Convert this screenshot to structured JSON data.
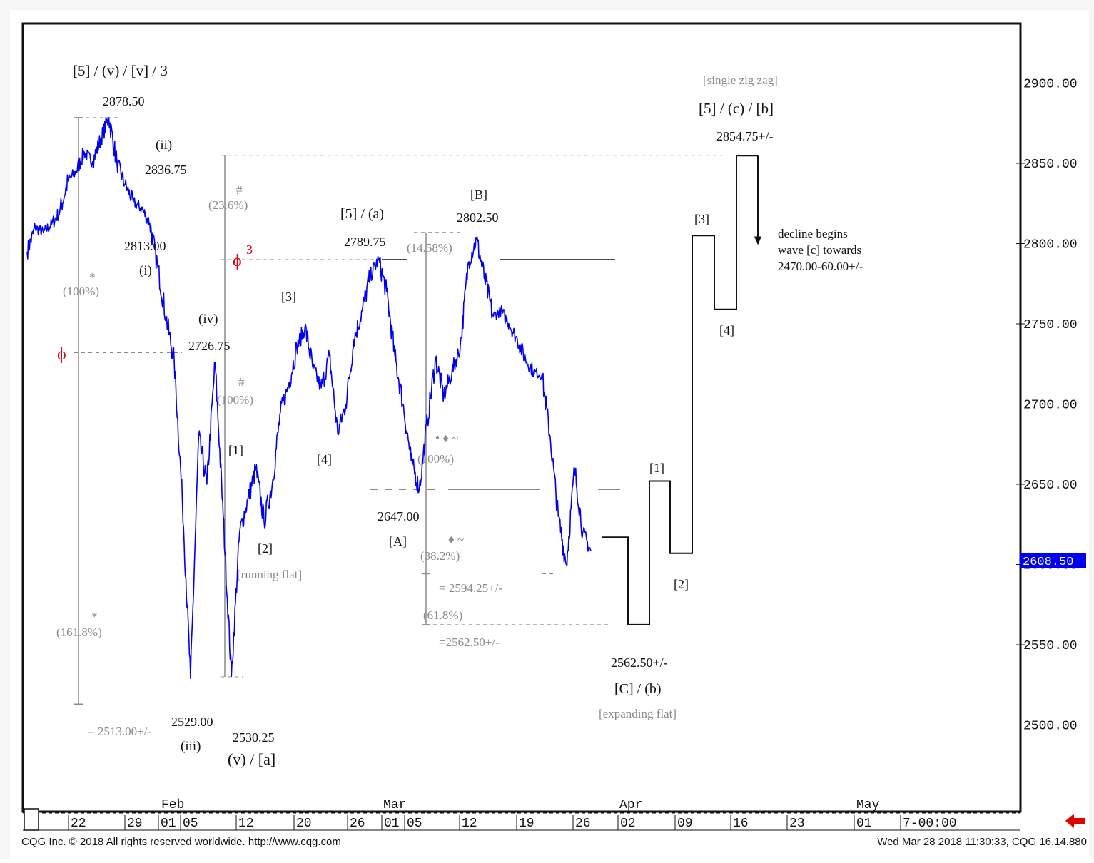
{
  "footer": {
    "copyright": "CQG Inc. © 2018 All rights reserved worldwide. http://www.cqg.com",
    "timestamp": "Wed Mar 28 2018 11:30:33, CQG 16.14.880"
  },
  "colors": {
    "price_line": "#0000ee",
    "annotation": "#111111",
    "fib_grey": "#8a8a8a",
    "phi_red": "#e0000f",
    "last_price_bg": "#0000ee",
    "arrow_red": "#e00000"
  },
  "chart_data": {
    "type": "line",
    "title": "",
    "xlabel": "",
    "ylabel": "",
    "ylim": [
      2462,
      2945
    ],
    "y_ticks": [
      "2900.00",
      "2850.00",
      "2800.00",
      "2750.00",
      "2700.00",
      "2650.00",
      "2600.00",
      "2550.00",
      "2500.00"
    ],
    "last_price": "2608.50",
    "x_month_labels": [
      "Feb",
      "Mar",
      "Apr",
      "May"
    ],
    "x_day_labels": [
      "22",
      "29",
      "01",
      "05",
      "12",
      "20",
      "26",
      "01",
      "05",
      "12",
      "19",
      "26",
      "02",
      "09",
      "16",
      "23",
      "01",
      "7-00:00"
    ],
    "series": [
      {
        "x_day": [
          0,
          1,
          2,
          3,
          4,
          5,
          6,
          7,
          8,
          9,
          10,
          11,
          12,
          13,
          14,
          15,
          16,
          17,
          18,
          19,
          20,
          21,
          22,
          23,
          24,
          25,
          26,
          27,
          28,
          29,
          30,
          31,
          32,
          33,
          34,
          35,
          36,
          37,
          38,
          39,
          40,
          41,
          42,
          43,
          44,
          45,
          46,
          47,
          48,
          49,
          50,
          51,
          52,
          53,
          54,
          55,
          56,
          57,
          58,
          59,
          60,
          61,
          62,
          63,
          64,
          65,
          66,
          67,
          68,
          69
        ],
        "y": [
          2795,
          2810,
          2807,
          2812,
          2820,
          2839,
          2845,
          2857,
          2851,
          2865,
          2878.5,
          2850,
          2836.75,
          2826,
          2822,
          2813,
          2785,
          2754,
          2726.75,
          2640,
          2529,
          2680,
          2650,
          2726,
          2630,
          2530.25,
          2620,
          2640,
          2660,
          2627,
          2650,
          2695,
          2712,
          2735,
          2748,
          2722,
          2710,
          2730,
          2682,
          2700,
          2740,
          2758,
          2780,
          2789.75,
          2770,
          2730,
          2700,
          2665,
          2647,
          2690,
          2728,
          2705,
          2720,
          2735,
          2788,
          2802.5,
          2778,
          2755,
          2758,
          2750,
          2740,
          2728,
          2720,
          2718,
          2680,
          2630,
          2600,
          2660,
          2620,
          2608.5
        ]
      }
    ],
    "projection": {
      "x_day": [
        69,
        71,
        71,
        72,
        72,
        73,
        73,
        76,
        76,
        78,
        78,
        80,
        80,
        82
      ],
      "y": [
        2617,
        2617,
        2562.5,
        2562.5,
        2652,
        2652,
        2607,
        2607,
        2805,
        2805,
        2759,
        2759,
        2854.75,
        2854.75
      ],
      "arrow_to": 2800
    },
    "annotations": {
      "top_label": "[5] / (v) / [v] / 3",
      "top_value": "2878.50",
      "ii_label": "(ii)",
      "ii_value": "2836.75",
      "i_value": "2813.00",
      "i_label": "(i)",
      "iv_label": "(iv)",
      "iv_value": "2726.75",
      "iii_value": "2529.00",
      "iii_label": "(iii)",
      "v_value": "2530.25",
      "v_label": "(v) / [a]",
      "fib_100_left": "(100%)",
      "fib_1618": "(161.8%)",
      "eq_2513": "= 2513.00+/-",
      "fib_236": "(23.6%)",
      "fib_100_mid": "(100%)",
      "hash": "#",
      "star": "*",
      "phi": "ϕ",
      "phi_sup": "3",
      "w1": "[1]",
      "w2": "[2]",
      "running_flat": "[running flat]",
      "w3_a": "[3]",
      "w4_a": "[4]",
      "w5a_label": "[5] / (a)",
      "w5a_value": "2789.75",
      "A_value": "2647.00",
      "A_label": "[A]",
      "B_label": "[B]",
      "B_value": "2802.50",
      "fib_1458": "(14.58%)",
      "fib_100_right": "(100%)",
      "fib_382": "(38.2%)",
      "fib_618": "(61.8%)",
      "eq_2594": "= 2594.25+/-",
      "eq_2562": "=2562.50+/-",
      "dots": "• ♦ ~",
      "diamond": "♦ ~",
      "C_value": "2562.50+/-",
      "C_label": "[C] / (b)",
      "expanding_flat": "[expanding flat]",
      "p1": "[1]",
      "p2": "[2]",
      "p3": "[3]",
      "p4": "[4]",
      "single_zig_zag": "[single zig zag]",
      "b_label": "[5] / (c) / [b]",
      "b_value": "2854.75+/-",
      "decline_1": "decline begins",
      "decline_2": "wave [c] towards",
      "decline_3": "2470.00-60.00+/-"
    }
  }
}
